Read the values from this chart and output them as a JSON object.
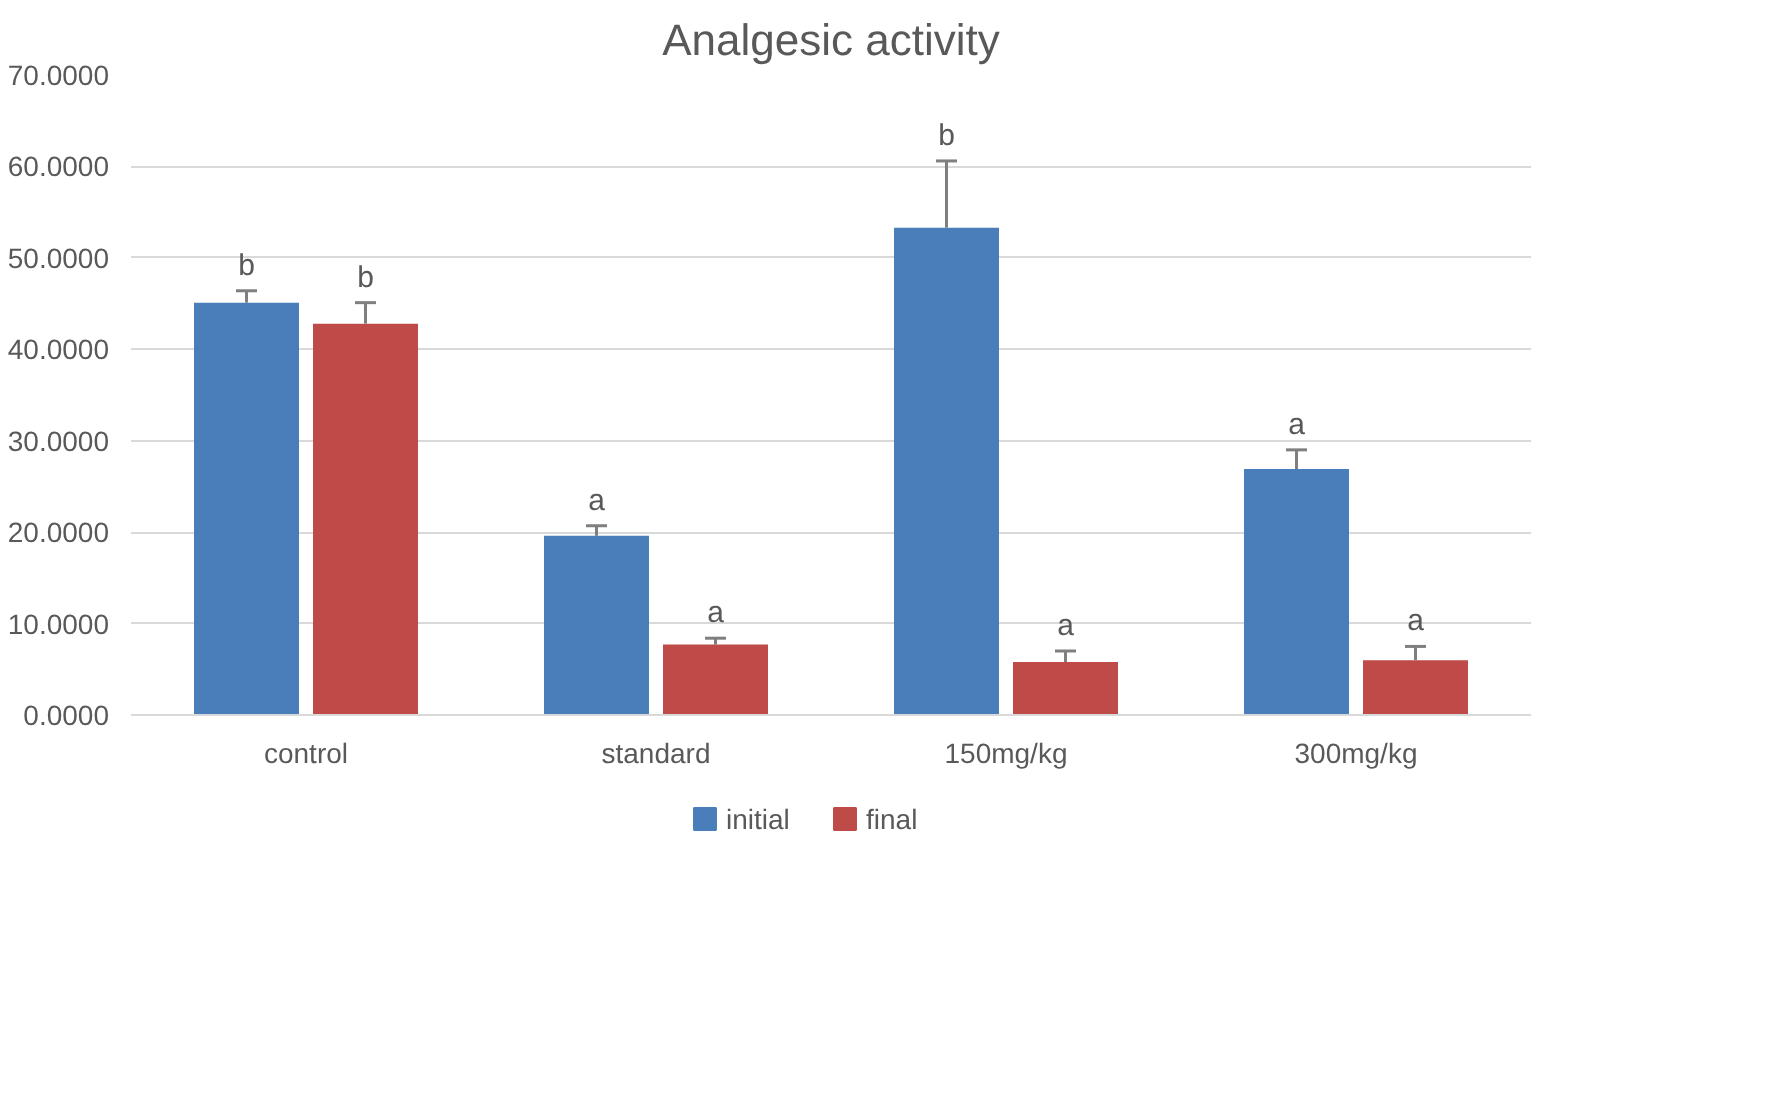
{
  "chart_data": {
    "type": "bar",
    "title": "Analgesic activity",
    "categories": [
      "control",
      "standard",
      "150mg/kg",
      "300mg/kg"
    ],
    "series": [
      {
        "name": "initial",
        "color": "#4a7ebb",
        "values": [
          45.1,
          19.6,
          53.3,
          26.9
        ],
        "errors": [
          [
            45.1,
            46.4
          ],
          [
            19.6,
            20.7
          ],
          [
            53.3,
            60.6
          ],
          [
            26.9,
            29.0
          ]
        ]
      },
      {
        "name": "final",
        "color": "#be4b48",
        "values": [
          42.8,
          7.7,
          5.8,
          6.0
        ],
        "errors": [
          [
            42.8,
            45.1
          ],
          [
            7.7,
            8.4
          ],
          [
            5.8,
            7.0
          ],
          [
            6.0,
            7.5
          ]
        ]
      }
    ],
    "annotations": [
      "b",
      "b",
      "a",
      "a",
      "b",
      "a",
      "a",
      "a"
    ],
    "ylim": [
      0,
      70
    ],
    "yticks": [
      {
        "value": 0,
        "label": "0.0000"
      },
      {
        "value": 10,
        "label": "10.0000"
      },
      {
        "value": 20,
        "label": "20.0000"
      },
      {
        "value": 30,
        "label": "30.0000"
      },
      {
        "value": 40,
        "label": "40.0000"
      },
      {
        "value": 50,
        "label": "50.0000"
      },
      {
        "value": 60,
        "label": "60.0000"
      },
      {
        "value": 70,
        "label": "70.0000"
      }
    ],
    "grid": "y",
    "legend": "bottom"
  }
}
